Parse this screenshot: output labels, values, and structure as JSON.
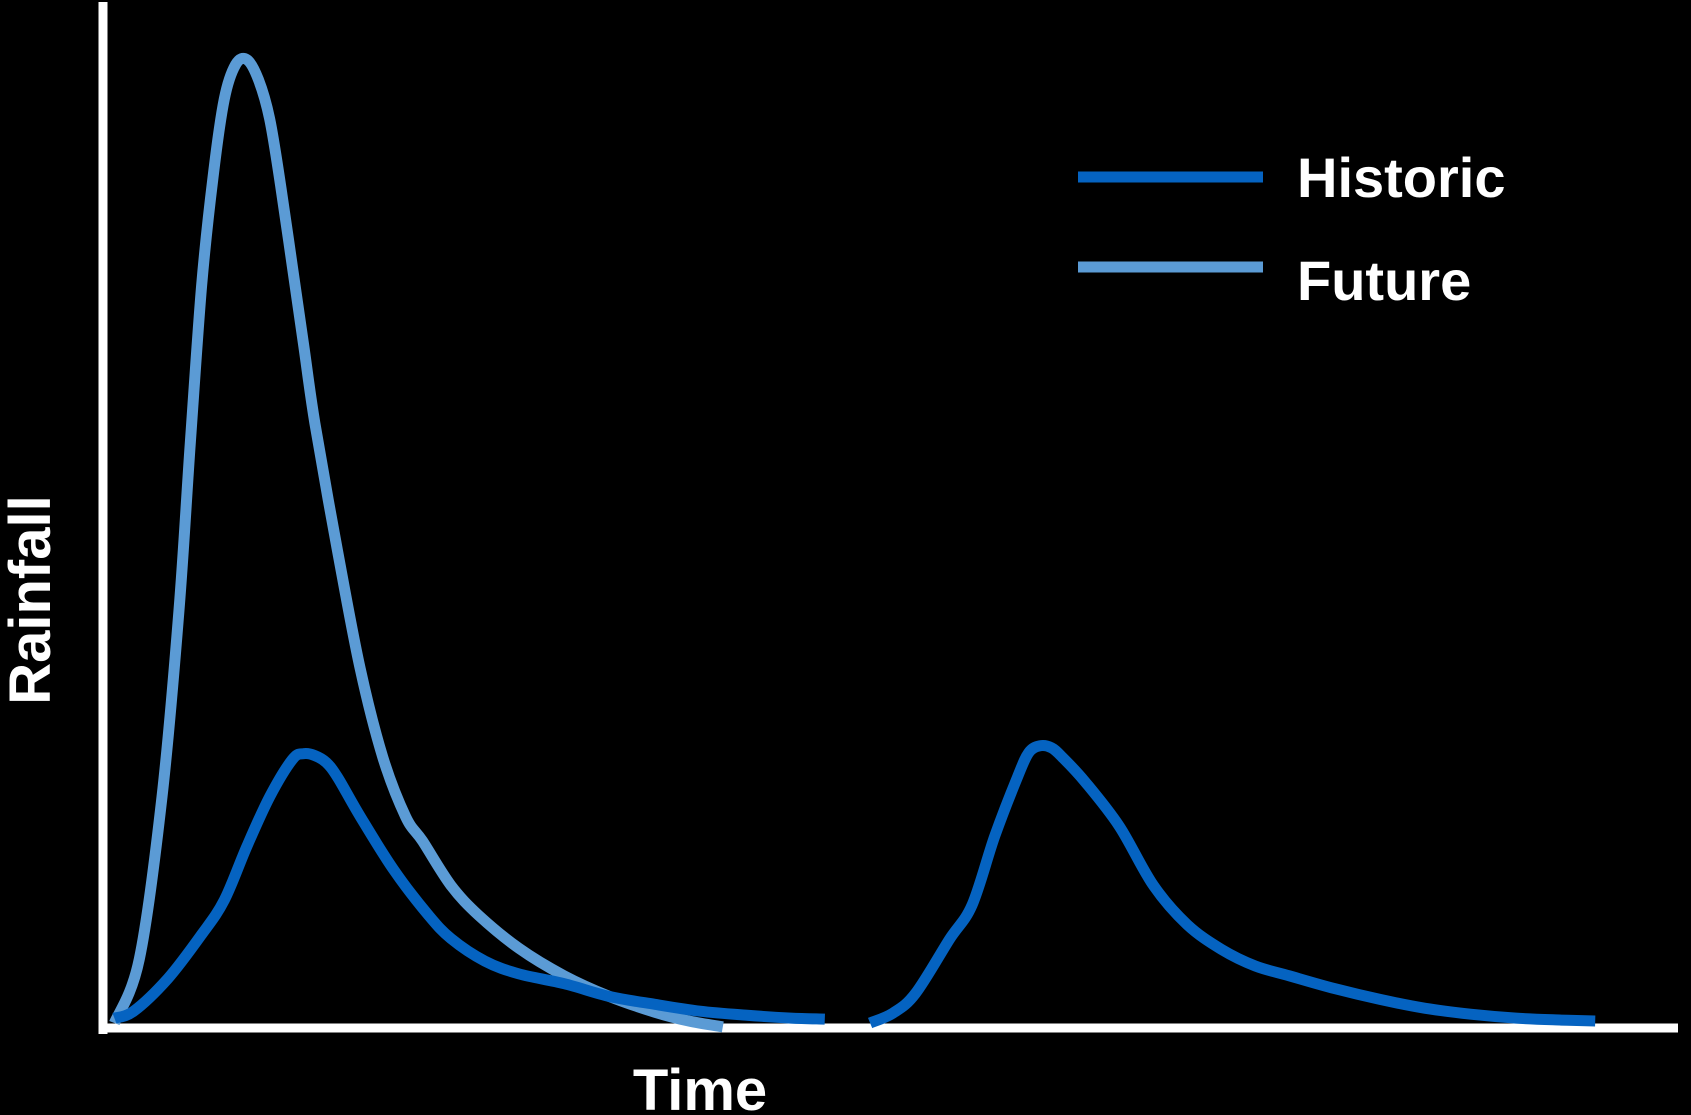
{
  "chart_data": {
    "type": "line",
    "title": "",
    "xlabel": "Time",
    "ylabel": "Rainfall",
    "xlim": [
      0,
      100
    ],
    "ylim": [
      0,
      100
    ],
    "grid": false,
    "ticks_shown": false,
    "legend": {
      "placement": "top-right",
      "entries": [
        "Historic",
        "Future"
      ]
    },
    "series": [
      {
        "name": "Historic",
        "color": "#0563C1",
        "segments": [
          {
            "x": [
              0.3,
              2,
              5,
              8,
              10,
              12,
              14,
              16,
              17,
              18,
              19,
              20,
              22,
              25,
              28,
              30,
              33,
              36,
              40,
              44,
              48,
              52,
              56,
              60,
              63
            ],
            "y": [
              0.5,
              1.2,
              4.5,
              9,
              12.5,
              18,
              23,
              26.8,
              27.4,
              27.2,
              26.5,
              25,
              21,
              15.5,
              11,
              8.6,
              6.3,
              5,
              4,
              2.7,
              1.9,
              1.2,
              0.8,
              0.5,
              0.4
            ]
          },
          {
            "x": [
              67,
              69,
              71,
              74,
              76,
              78,
              80,
              81,
              82,
              83,
              84,
              86,
              89,
              92,
              95,
              98,
              101,
              104,
              108,
              112,
              116,
              120,
              124,
              128,
              131
            ],
            "y": [
              0,
              1,
              3,
              8.5,
              12,
              19,
              25,
              27.5,
              28.2,
              28,
              27,
              24.5,
              20,
              14,
              10,
              7.5,
              5.8,
              4.8,
              3.5,
              2.4,
              1.5,
              0.9,
              0.5,
              0.3,
              0.2
            ]
          }
        ]
      },
      {
        "name": "Future",
        "color": "#5B9BD5",
        "segments": [
          {
            "x": [
              0.3,
              2.5,
              4.5,
              6,
              7,
              8,
              9,
              10,
              11,
              12,
              13,
              14,
              15,
              16,
              17,
              18,
              20,
              22,
              24,
              26,
              27.5,
              30,
              32.5,
              36,
              40,
              44,
              48,
              51,
              54
            ],
            "y": [
              0,
              6.5,
              23,
              42,
              59,
              75,
              86,
              94,
              97.5,
              98,
              96,
              92,
              85,
              77,
              69,
              61,
              48,
              36,
              27,
              21,
              18.5,
              14,
              10.9,
              7.6,
              4.8,
              2.7,
              1.1,
              0.2,
              -0.4
            ]
          }
        ]
      }
    ]
  }
}
